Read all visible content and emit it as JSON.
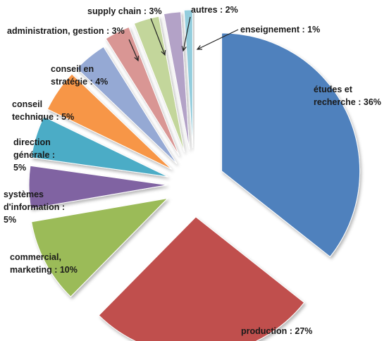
{
  "chart_data": {
    "type": "pie",
    "exploded": true,
    "legend": "none",
    "slices": [
      {
        "name": "études et recherche",
        "value": 36,
        "color": "#4F81BD",
        "label_lines": [
          "études et",
          "recherche : 36%"
        ]
      },
      {
        "name": "production",
        "value": 27,
        "color": "#C0504D",
        "label_lines": [
          "production : 27%"
        ]
      },
      {
        "name": "commercial, marketing",
        "value": 10,
        "color": "#9BBB59",
        "label_lines": [
          "commercial,",
          "marketing :  10%"
        ]
      },
      {
        "name": "systèmes d'information",
        "value": 5,
        "color": "#8064A2",
        "label_lines": [
          "systèmes",
          "d'information :",
          "5%"
        ]
      },
      {
        "name": "direction générale",
        "value": 5,
        "color": "#4BACC6",
        "label_lines": [
          "direction",
          "générale :",
          "5%"
        ]
      },
      {
        "name": "conseil technique",
        "value": 5,
        "color": "#F79646",
        "label_lines": [
          "conseil",
          "technique : 5%"
        ]
      },
      {
        "name": "conseil en stratégie",
        "value": 4,
        "color": "#95A9D4",
        "label_lines": [
          "conseil en",
          "stratégie : 4%"
        ]
      },
      {
        "name": "administration, gestion",
        "value": 3,
        "color": "#D99694",
        "label_lines": [
          "administration, gestion : 3%"
        ]
      },
      {
        "name": "supply chain",
        "value": 3,
        "color": "#C3D69B",
        "label_lines": [
          "supply chain : 3%"
        ]
      },
      {
        "name": "autres",
        "value": 2,
        "color": "#B3A2C7",
        "label_lines": [
          "autres : 2%"
        ]
      },
      {
        "name": "enseignement",
        "value": 1,
        "color": "#93CDDD",
        "label_lines": [
          "enseignement : 1%"
        ]
      }
    ]
  }
}
